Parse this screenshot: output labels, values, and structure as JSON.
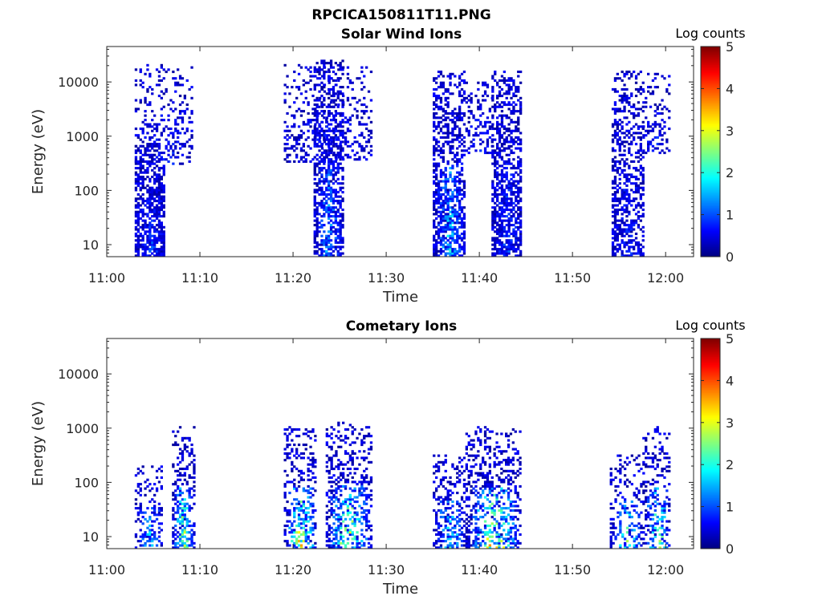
{
  "figure": {
    "title": "RPCICA150811T11.PNG"
  },
  "chart_data": [
    {
      "type": "heatmap",
      "title": "Solar Wind Ions",
      "xlabel": "Time",
      "ylabel": "Energy (eV)",
      "x_ticks": [
        "11:00",
        "11:10",
        "11:20",
        "11:30",
        "11:40",
        "11:50",
        "12:00"
      ],
      "x_range": [
        "11:00",
        "12:03"
      ],
      "y_scale": "log",
      "y_ticks": [
        "10",
        "100",
        "1000",
        "10000"
      ],
      "y_range": [
        6,
        45000
      ],
      "colorbar": {
        "label": "Log counts",
        "ticks": [
          "0",
          "1",
          "2",
          "3",
          "4",
          "5"
        ],
        "range": [
          0,
          5
        ],
        "colormap": "jet"
      },
      "clusters": [
        {
          "t": [
            3.0,
            6.2
          ],
          "e": [
            6,
            700
          ],
          "dense": 0.75,
          "peak": 0.6
        },
        {
          "t": [
            3.0,
            9.2
          ],
          "e": [
            300,
            20000
          ],
          "dense": 0.32,
          "peak": 0.4
        },
        {
          "t": [
            22.2,
            25.3
          ],
          "e": [
            6,
            25000
          ],
          "dense": 0.68,
          "peak": 1.3
        },
        {
          "t": [
            19.0,
            28.5
          ],
          "e": [
            350,
            20000
          ],
          "dense": 0.3,
          "peak": 0.4
        },
        {
          "t": [
            35.0,
            38.5
          ],
          "e": [
            6,
            15000
          ],
          "dense": 0.72,
          "peak": 1.7
        },
        {
          "t": [
            41.3,
            44.5
          ],
          "e": [
            6,
            15000
          ],
          "dense": 0.72,
          "peak": 0.6
        },
        {
          "t": [
            38.5,
            41.3
          ],
          "e": [
            500,
            10000
          ],
          "dense": 0.3,
          "peak": 0.4
        },
        {
          "t": [
            54.2,
            57.5
          ],
          "e": [
            6,
            15000
          ],
          "dense": 0.6,
          "peak": 0.4
        },
        {
          "t": [
            57.5,
            60.5
          ],
          "e": [
            500,
            15000
          ],
          "dense": 0.3,
          "peak": 0.4
        }
      ]
    },
    {
      "type": "heatmap",
      "title": "Cometary Ions",
      "xlabel": "Time",
      "ylabel": "Energy (eV)",
      "x_ticks": [
        "11:00",
        "11:10",
        "11:20",
        "11:30",
        "11:40",
        "11:50",
        "12:00"
      ],
      "x_range": [
        "11:00",
        "12:03"
      ],
      "y_scale": "log",
      "y_ticks": [
        "10",
        "100",
        "1000",
        "10000"
      ],
      "y_range": [
        6,
        45000
      ],
      "colorbar": {
        "label": "Log counts",
        "ticks": [
          "0",
          "1",
          "2",
          "3",
          "4",
          "5"
        ],
        "range": [
          0,
          5
        ],
        "colormap": "jet"
      },
      "clusters": [
        {
          "t": [
            3.0,
            6.0
          ],
          "e": [
            6,
            200
          ],
          "dense": 0.4,
          "peak": 2.0
        },
        {
          "t": [
            7.0,
            9.3
          ],
          "e": [
            6,
            1000
          ],
          "dense": 0.55,
          "peak": 3.3
        },
        {
          "t": [
            19.0,
            22.5
          ],
          "e": [
            6,
            1000
          ],
          "dense": 0.45,
          "peak": 3.8
        },
        {
          "t": [
            23.5,
            28.5
          ],
          "e": [
            6,
            1200
          ],
          "dense": 0.5,
          "peak": 3.5
        },
        {
          "t": [
            35.0,
            38.5
          ],
          "e": [
            6,
            300
          ],
          "dense": 0.45,
          "peak": 2.2
        },
        {
          "t": [
            38.5,
            44.5
          ],
          "e": [
            6,
            1000
          ],
          "dense": 0.5,
          "peak": 3.8
        },
        {
          "t": [
            54.0,
            57.5
          ],
          "e": [
            6,
            300
          ],
          "dense": 0.4,
          "peak": 2.4
        },
        {
          "t": [
            57.5,
            60.5
          ],
          "e": [
            6,
            1000
          ],
          "dense": 0.45,
          "peak": 3.0
        }
      ]
    }
  ]
}
